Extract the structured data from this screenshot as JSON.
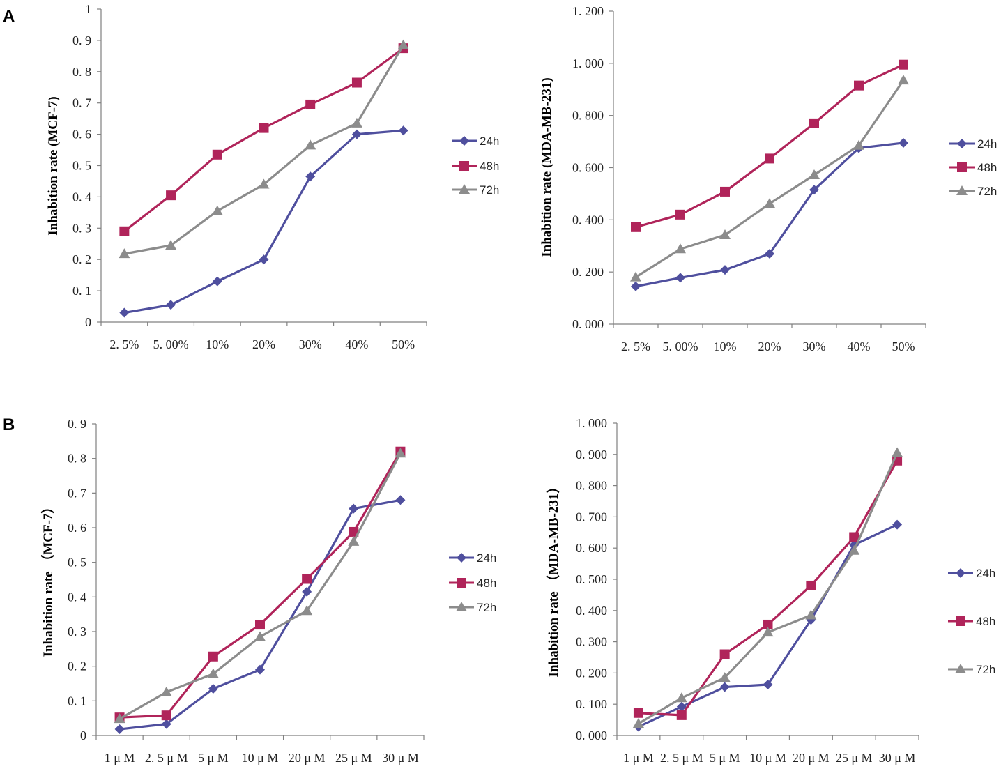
{
  "panel_labels": [
    "A",
    "B"
  ],
  "colors": {
    "24h": "#4f4f9e",
    "48h": "#b0245a",
    "72h": "#8c8c8c",
    "axis": "#808080"
  },
  "chart_data": [
    {
      "id": "A-MCF7",
      "type": "line",
      "ylabel": "Inhabition rate (MCF-7)",
      "categories": [
        "2. 5%",
        "5. 00%",
        "10%",
        "20%",
        "30%",
        "40%",
        "50%"
      ],
      "ylim": [
        0,
        1
      ],
      "ytick_values": [
        0,
        0.1,
        0.2,
        0.3,
        0.4,
        0.5,
        0.6,
        0.7,
        0.8,
        0.9,
        1
      ],
      "ytick_labels": [
        "0",
        "0. 1",
        "0. 2",
        "0. 3",
        "0. 4",
        "0. 5",
        "0. 6",
        "0. 7",
        "0. 8",
        "0. 9",
        "1"
      ],
      "legend_position": "right",
      "series": [
        {
          "name": "24h",
          "marker": "diamond",
          "values": [
            0.03,
            0.055,
            0.13,
            0.2,
            0.465,
            0.6,
            0.612
          ]
        },
        {
          "name": "48h",
          "marker": "square",
          "values": [
            0.29,
            0.405,
            0.535,
            0.62,
            0.695,
            0.765,
            0.875
          ]
        },
        {
          "name": "72h",
          "marker": "triangle",
          "values": [
            0.218,
            0.245,
            0.355,
            0.44,
            0.565,
            0.635,
            0.885
          ]
        }
      ]
    },
    {
      "id": "A-MDA",
      "type": "line",
      "ylabel": "Inhabition rate (MDA-MB-231)",
      "categories": [
        "2. 5%",
        "5. 00%",
        "10%",
        "20%",
        "30%",
        "40%",
        "50%"
      ],
      "ylim": [
        0,
        1.2
      ],
      "ytick_values": [
        0,
        0.2,
        0.4,
        0.6,
        0.8,
        1.0,
        1.2
      ],
      "ytick_labels": [
        "0. 000",
        "0. 200",
        "0. 400",
        "0. 600",
        "0. 800",
        "1. 000",
        "1. 200"
      ],
      "legend_position": "right",
      "series": [
        {
          "name": "24h",
          "marker": "diamond",
          "values": [
            0.145,
            0.178,
            0.208,
            0.27,
            0.515,
            0.675,
            0.695
          ]
        },
        {
          "name": "48h",
          "marker": "square",
          "values": [
            0.372,
            0.42,
            0.508,
            0.635,
            0.77,
            0.915,
            0.995
          ]
        },
        {
          "name": "72h",
          "marker": "triangle",
          "values": [
            0.18,
            0.288,
            0.342,
            0.462,
            0.572,
            0.685,
            0.935
          ]
        }
      ]
    },
    {
      "id": "B-MCF7",
      "type": "line",
      "ylabel": "Inhabition rate （MCF-7）",
      "categories": [
        "1 μ M",
        "2. 5 μ M",
        "5 μ M",
        "10 μ M",
        "20 μ M",
        "25 μ M",
        "30 μ M"
      ],
      "ylim": [
        0,
        0.9
      ],
      "ytick_values": [
        0,
        0.1,
        0.2,
        0.3,
        0.4,
        0.5,
        0.6,
        0.7,
        0.8,
        0.9
      ],
      "ytick_labels": [
        "0",
        "0. 1",
        "0. 2",
        "0. 3",
        "0. 4",
        "0. 5",
        "0. 6",
        "0. 7",
        "0. 8",
        "0. 9"
      ],
      "legend_position": "right",
      "series": [
        {
          "name": "24h",
          "marker": "diamond",
          "values": [
            0.018,
            0.033,
            0.135,
            0.19,
            0.415,
            0.655,
            0.68
          ]
        },
        {
          "name": "48h",
          "marker": "square",
          "values": [
            0.052,
            0.058,
            0.228,
            0.32,
            0.452,
            0.588,
            0.82
          ]
        },
        {
          "name": "72h",
          "marker": "triangle",
          "values": [
            0.048,
            0.125,
            0.178,
            0.285,
            0.36,
            0.56,
            0.815
          ]
        }
      ]
    },
    {
      "id": "B-MDA",
      "type": "line",
      "ylabel": "Inhabition rate （MDA-MB-231）",
      "categories": [
        "1 μ M",
        "2. 5 μ M",
        "5 μ M",
        "10 μ M",
        "20 μ M",
        "25 μ M",
        "30 μ M"
      ],
      "ylim": [
        0,
        1.0
      ],
      "ytick_values": [
        0,
        0.1,
        0.2,
        0.3,
        0.4,
        0.5,
        0.6,
        0.7,
        0.8,
        0.9,
        1.0
      ],
      "ytick_labels": [
        "0. 000",
        "0. 100",
        "0. 200",
        "0. 300",
        "0. 400",
        "0. 500",
        "0. 600",
        "0. 700",
        "0. 800",
        "0. 900",
        "1. 000"
      ],
      "legend_position": "right",
      "series": [
        {
          "name": "24h",
          "marker": "diamond",
          "values": [
            0.028,
            0.092,
            0.155,
            0.163,
            0.37,
            0.61,
            0.675
          ]
        },
        {
          "name": "48h",
          "marker": "square",
          "values": [
            0.072,
            0.065,
            0.26,
            0.355,
            0.48,
            0.635,
            0.88
          ]
        },
        {
          "name": "72h",
          "marker": "triangle",
          "values": [
            0.038,
            0.12,
            0.185,
            0.33,
            0.385,
            0.592,
            0.905
          ]
        }
      ]
    }
  ]
}
